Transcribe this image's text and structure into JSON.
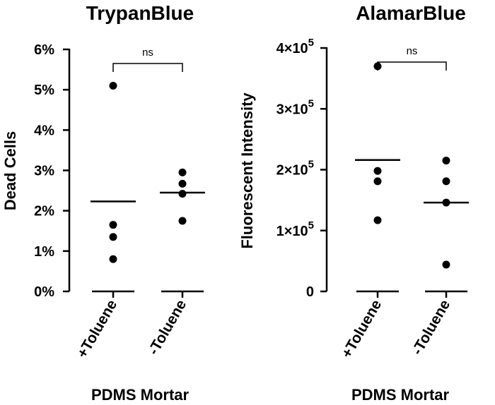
{
  "chart_data": [
    {
      "type": "scatter",
      "title": "TrypanBlue",
      "xlabel": "PDMS Mortar",
      "ylabel": "Dead Cells",
      "ylim": [
        0,
        6
      ],
      "y_ticks": [
        "0%",
        "1%",
        "2%",
        "3%",
        "4%",
        "5%",
        "6%"
      ],
      "categories": [
        "+Toluene",
        "-Toluene"
      ],
      "series": [
        {
          "category": "+Toluene",
          "points": [
            5.1,
            1.65,
            1.35,
            0.8
          ],
          "mean": 2.23
        },
        {
          "category": "-Toluene",
          "points": [
            2.95,
            2.67,
            2.42,
            1.75
          ],
          "mean": 2.45
        }
      ],
      "annotation": "ns",
      "grid": false
    },
    {
      "type": "scatter",
      "title": "AlamarBlue",
      "xlabel": "PDMS Mortar",
      "ylabel": "Fluorescent Intensity",
      "ylim": [
        0,
        400000
      ],
      "y_ticks": [
        {
          "mant": "",
          "exp": "",
          "text": "0"
        },
        {
          "mant": "1×10",
          "exp": "5",
          "text": ""
        },
        {
          "mant": "2×10",
          "exp": "5",
          "text": ""
        },
        {
          "mant": "3×10",
          "exp": "5",
          "text": ""
        },
        {
          "mant": "4×10",
          "exp": "5",
          "text": ""
        }
      ],
      "categories": [
        "+Toluene",
        "-Toluene"
      ],
      "series": [
        {
          "category": "+Toluene",
          "points": [
            370000,
            198000,
            181000,
            117000
          ],
          "mean": 216000
        },
        {
          "category": "-Toluene",
          "points": [
            215000,
            181000,
            146000,
            44000
          ],
          "mean": 146000
        }
      ],
      "annotation": "ns",
      "grid": false
    }
  ]
}
